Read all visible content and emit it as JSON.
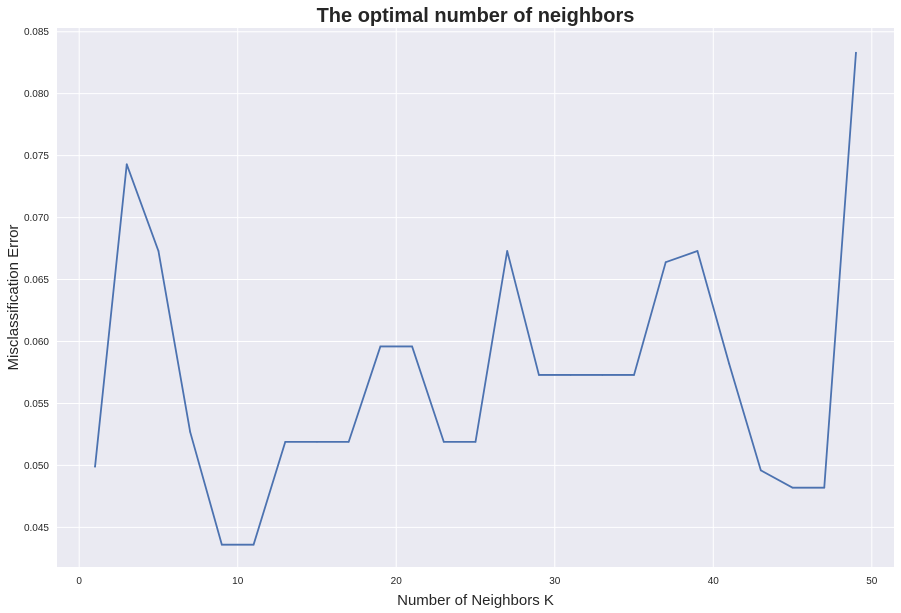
{
  "chart_data": {
    "type": "line",
    "title": "The optimal number of neighbors",
    "xlabel": "Number of Neighbors K",
    "ylabel": "Misclassification Error",
    "xlim": [
      -1.4,
      51.4
    ],
    "ylim": [
      0.0418,
      0.0853
    ],
    "xticks": [
      0,
      10,
      20,
      30,
      40,
      50
    ],
    "yticks": [
      0.045,
      0.05,
      0.055,
      0.06,
      0.065,
      0.07,
      0.075,
      0.08,
      0.085
    ],
    "ytick_labels": [
      "0.045",
      "0.050",
      "0.055",
      "0.060",
      "0.065",
      "0.070",
      "0.075",
      "0.080",
      "0.085"
    ],
    "grid": true,
    "background": "#eaeaf2",
    "grid_color": "#ffffff",
    "series": [
      {
        "color": "#4c72b0",
        "x": [
          1,
          3,
          5,
          7,
          9,
          11,
          13,
          15,
          17,
          19,
          21,
          23,
          25,
          27,
          29,
          31,
          33,
          35,
          37,
          39,
          41,
          43,
          45,
          47,
          49
        ],
        "y": [
          0.0499,
          0.0743,
          0.0673,
          0.0527,
          0.0436,
          0.0436,
          0.0519,
          0.0519,
          0.0519,
          0.0596,
          0.0596,
          0.0519,
          0.0519,
          0.0673,
          0.0573,
          0.0573,
          0.0573,
          0.0573,
          0.0664,
          0.0673,
          0.0582,
          0.0496,
          0.0482,
          0.0482,
          0.0833
        ]
      }
    ]
  }
}
